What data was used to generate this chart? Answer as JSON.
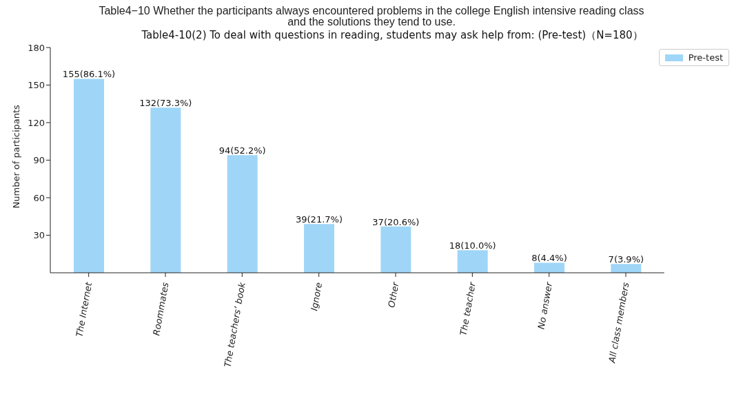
{
  "chart_data": {
    "type": "bar",
    "title": "Table4−10 Whether the participants always encountered problems in the college English intensive reading class and the solutions they tend to use.",
    "subtitle": "Table4-10(2) To deal with questions in reading, students may ask help from: (Pre-test)（N=180）",
    "ylabel": "Number of participants",
    "categories": [
      "The Internet",
      "Roommates",
      "The teachers’ book",
      "Ignore",
      "Other",
      "The teacher",
      "No answer",
      "All class members"
    ],
    "series": [
      {
        "name": "Pre-test",
        "color": "#9fd6f7",
        "values": [
          155,
          132,
          94,
          39,
          37,
          18,
          8,
          7
        ],
        "value_labels": [
          "155(86.1%)",
          "132(73.3%)",
          "94(52.2%)",
          "39(21.7%)",
          "37(20.6%)",
          "18(10.0%)",
          "8(4.4%)",
          "7(3.9%)"
        ]
      }
    ],
    "ylim": [
      0,
      180
    ],
    "yticks": [
      30,
      60,
      90,
      120,
      150,
      180
    ],
    "legend": "top right"
  }
}
